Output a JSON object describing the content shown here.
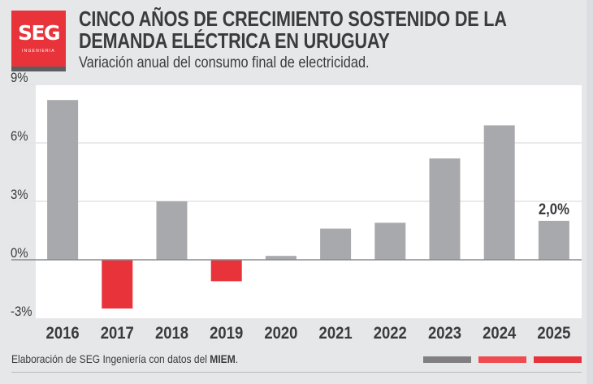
{
  "header": {
    "logo_text": "SEG",
    "logo_subtext": "INGENIERIA",
    "title_line1": "CINCO AÑOS DE CRECIMIENTO SOSTENIDO DE LA",
    "title_line2": "DEMANDA ELÉCTRICA EN URUGUAY",
    "subtitle": "Variación anual del consumo final de electricidad."
  },
  "footer": {
    "note_prefix": "Elaboración de SEG Ingeniería con datos del ",
    "note_bold": "MIEM",
    "note_suffix": ".",
    "legend_colors": [
      "#808083",
      "#f04b50",
      "#e8323a"
    ]
  },
  "colors": {
    "positive": "#a8a9ad",
    "negative": "#e8333a",
    "text": "#3a3b3d",
    "grid": "#e3e4e6",
    "zero_line": "#8a8b8e"
  },
  "chart_data": {
    "type": "bar",
    "title": "CINCO AÑOS DE CRECIMIENTO SOSTENIDO DE LA DEMANDA ELÉCTRICA EN URUGUAY",
    "subtitle": "Variación anual del consumo final de electricidad.",
    "xlabel": "",
    "ylabel": "",
    "categories": [
      "2016",
      "2017",
      "2018",
      "2019",
      "2020",
      "2021",
      "2022",
      "2023",
      "2024",
      "2025"
    ],
    "values": [
      8.2,
      -2.5,
      3.0,
      -1.1,
      0.2,
      1.6,
      1.9,
      5.2,
      6.9,
      2.0
    ],
    "ylim": [
      -3,
      9
    ],
    "yticks": [
      9,
      6,
      3,
      0,
      -3
    ],
    "ytick_labels": [
      "9%",
      "6%",
      "3%",
      "0%",
      "-3%"
    ],
    "grid": true,
    "annotations": [
      {
        "category": "2025",
        "text": "2,0%"
      }
    ]
  }
}
